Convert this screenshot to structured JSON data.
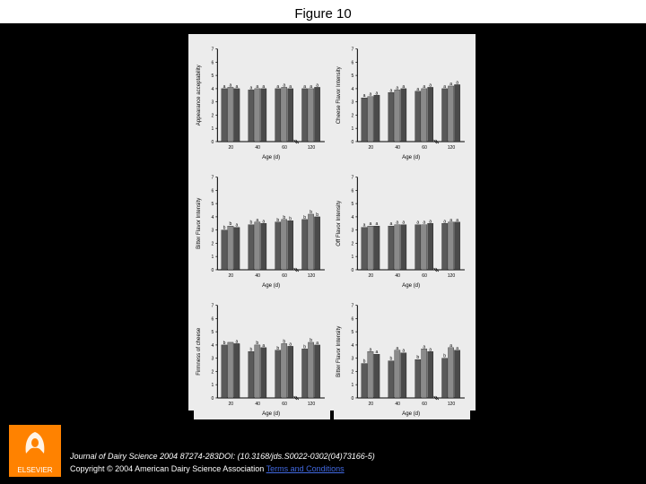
{
  "figure_title": "Figure 10",
  "citation": "Journal of Dairy Science 2004 87274-283DOI: (10.3168/jds.S0022-0302(04)73166-5)",
  "copyright_prefix": "Copyright © 2004 American Dairy Science Association ",
  "terms_link": "Terms and Conditions",
  "publisher_logo_text": "ELSEVIER",
  "chart": {
    "type": "bar",
    "background_color": "#ececec",
    "axis_color": "#000000",
    "bar_colors": [
      "#5a5a5a",
      "#8a8a8a",
      "#4a4a4a"
    ],
    "xlabel": "Age (d)",
    "x_ticks": [
      "20",
      "40",
      "60",
      "120"
    ],
    "y_range": [
      0,
      7
    ],
    "y_ticks": [
      0,
      1,
      2,
      3,
      4,
      5,
      6,
      7
    ],
    "bar_group_width": 0.7,
    "axis_break_after": 60,
    "panels": [
      {
        "ylabel": "Appearance acceptability",
        "groups": [
          {
            "x": "20",
            "bars": [
              4.0,
              4.1,
              4.0
            ],
            "sig": [
              "a",
              "a",
              "a"
            ]
          },
          {
            "x": "40",
            "bars": [
              3.9,
              4.0,
              4.0
            ],
            "sig": [
              "a",
              "a",
              "a"
            ]
          },
          {
            "x": "60",
            "bars": [
              4.0,
              4.1,
              4.0
            ],
            "sig": [
              "a",
              "a",
              "a"
            ]
          },
          {
            "x": "120",
            "bars": [
              4.0,
              4.0,
              4.1
            ],
            "sig": [
              "a",
              "a",
              "a"
            ]
          }
        ]
      },
      {
        "ylabel": "Cheese Flavor Intensity",
        "groups": [
          {
            "x": "20",
            "bars": [
              3.3,
              3.4,
              3.5
            ],
            "sig": [
              "a",
              "a",
              "a"
            ]
          },
          {
            "x": "40",
            "bars": [
              3.7,
              3.9,
              4.0
            ],
            "sig": [
              "a",
              "a",
              "a"
            ]
          },
          {
            "x": "60",
            "bars": [
              3.8,
              4.0,
              4.1
            ],
            "sig": [
              "a",
              "a",
              "a"
            ]
          },
          {
            "x": "120",
            "bars": [
              4.0,
              4.2,
              4.3
            ],
            "sig": [
              "a",
              "a",
              "a"
            ]
          }
        ]
      },
      {
        "ylabel": "Bitter Flavor Intensity",
        "groups": [
          {
            "x": "20",
            "bars": [
              3.0,
              3.3,
              3.2
            ],
            "sig": [
              "b",
              "b",
              "a"
            ]
          },
          {
            "x": "40",
            "bars": [
              3.4,
              3.6,
              3.5
            ],
            "sig": [
              "b",
              "a",
              "a"
            ]
          },
          {
            "x": "60",
            "bars": [
              3.6,
              3.8,
              3.7
            ],
            "sig": [
              "b",
              "b",
              "b"
            ]
          },
          {
            "x": "120",
            "bars": [
              3.8,
              4.2,
              4.0
            ],
            "sig": [
              "b",
              "b",
              "b"
            ]
          }
        ]
      },
      {
        "ylabel": "Off Flavor Intensity",
        "groups": [
          {
            "x": "20",
            "bars": [
              3.2,
              3.3,
              3.3
            ],
            "sig": [
              "a",
              "a",
              "a"
            ]
          },
          {
            "x": "40",
            "bars": [
              3.3,
              3.4,
              3.4
            ],
            "sig": [
              "a",
              "a",
              "a"
            ]
          },
          {
            "x": "60",
            "bars": [
              3.4,
              3.4,
              3.5
            ],
            "sig": [
              "a",
              "a",
              "a"
            ]
          },
          {
            "x": "120",
            "bars": [
              3.5,
              3.6,
              3.6
            ],
            "sig": [
              "a",
              "a",
              "a"
            ]
          }
        ]
      },
      {
        "ylabel": "Firmness of cheese",
        "groups": [
          {
            "x": "20",
            "bars": [
              4.0,
              4.2,
              4.1
            ],
            "sig": [
              "b",
              "",
              "a"
            ]
          },
          {
            "x": "40",
            "bars": [
              3.5,
              4.0,
              3.8
            ],
            "sig": [
              "b",
              "b",
              "a"
            ]
          },
          {
            "x": "60",
            "bars": [
              3.6,
              4.1,
              3.9
            ],
            "sig": [
              "b",
              "b",
              "a"
            ]
          },
          {
            "x": "120",
            "bars": [
              3.7,
              4.2,
              4.0
            ],
            "sig": [
              "b",
              "b",
              "a"
            ]
          }
        ]
      },
      {
        "ylabel": "Bitter Flavor Intensity",
        "groups": [
          {
            "x": "20",
            "bars": [
              2.6,
              3.5,
              3.3
            ],
            "sig": [
              "b",
              "a",
              "a"
            ]
          },
          {
            "x": "40",
            "bars": [
              2.8,
              3.6,
              3.4
            ],
            "sig": [
              "b",
              "a",
              "a"
            ]
          },
          {
            "x": "60",
            "bars": [
              2.9,
              3.7,
              3.5
            ],
            "sig": [
              "b",
              "a",
              "a"
            ]
          },
          {
            "x": "120",
            "bars": [
              3.0,
              3.8,
              3.6
            ],
            "sig": [
              "b",
              "a",
              "a"
            ]
          }
        ]
      }
    ]
  }
}
